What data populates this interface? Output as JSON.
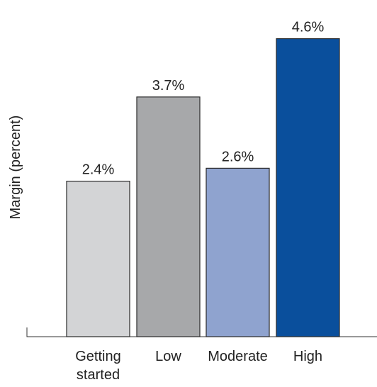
{
  "chart_data": {
    "type": "bar",
    "title": "",
    "xlabel": "",
    "ylabel": "Margin (percent)",
    "categories": [
      "Getting started",
      "Low",
      "Moderate",
      "High"
    ],
    "category_lines": [
      [
        "Getting",
        "started"
      ],
      [
        "Low"
      ],
      [
        "Moderate"
      ],
      [
        "High"
      ]
    ],
    "values": [
      2.4,
      3.7,
      2.6,
      4.6
    ],
    "value_labels": [
      "2.4%",
      "3.7%",
      "2.6%",
      "4.6%"
    ],
    "colors": [
      "#d3d4d6",
      "#a7a8aa",
      "#8fa3cf",
      "#0a4f9c"
    ],
    "ylim": [
      0,
      5
    ],
    "grid": false,
    "legend": "none"
  }
}
